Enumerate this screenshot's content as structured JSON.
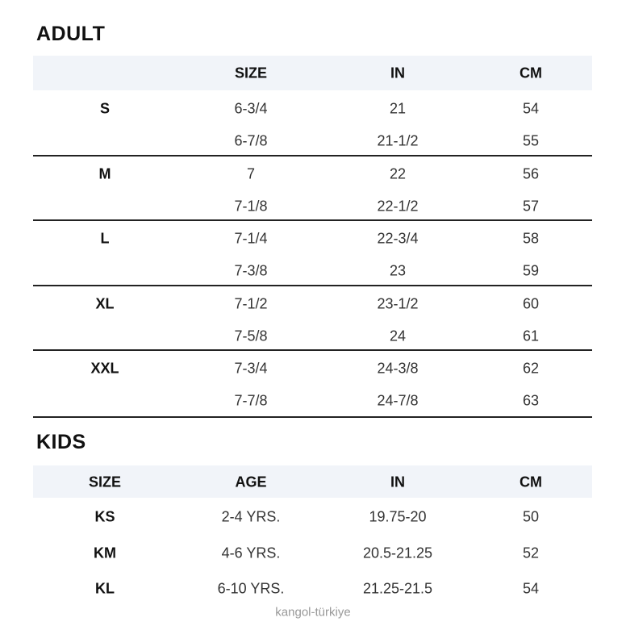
{
  "adult": {
    "title": "ADULT",
    "headers": [
      "",
      "SIZE",
      "IN",
      "CM"
    ],
    "groups": [
      {
        "label": "S",
        "rows": [
          [
            "6-3/4",
            "21",
            "54"
          ],
          [
            "6-7/8",
            "21-1/2",
            "55"
          ]
        ]
      },
      {
        "label": "M",
        "rows": [
          [
            "7",
            "22",
            "56"
          ],
          [
            "7-1/8",
            "22-1/2",
            "57"
          ]
        ]
      },
      {
        "label": "L",
        "rows": [
          [
            "7-1/4",
            "22-3/4",
            "58"
          ],
          [
            "7-3/8",
            "23",
            "59"
          ]
        ]
      },
      {
        "label": "XL",
        "rows": [
          [
            "7-1/2",
            "23-1/2",
            "60"
          ],
          [
            "7-5/8",
            "24",
            "61"
          ]
        ]
      },
      {
        "label": "XXL",
        "rows": [
          [
            "7-3/4",
            "24-3/8",
            "62"
          ],
          [
            "7-7/8",
            "24-7/8",
            "63"
          ]
        ]
      }
    ]
  },
  "kids": {
    "title": "KIDS",
    "headers": [
      "SIZE",
      "AGE",
      "IN",
      "CM"
    ],
    "rows": [
      [
        "KS",
        "2-4 YRS.",
        "19.75-20",
        "50"
      ],
      [
        "KM",
        "4-6 YRS.",
        "20.5-21.25",
        "52"
      ],
      [
        "KL",
        "6-10 YRS.",
        "21.25-21.5",
        "54"
      ]
    ]
  },
  "watermark": "kangol-türkiye"
}
